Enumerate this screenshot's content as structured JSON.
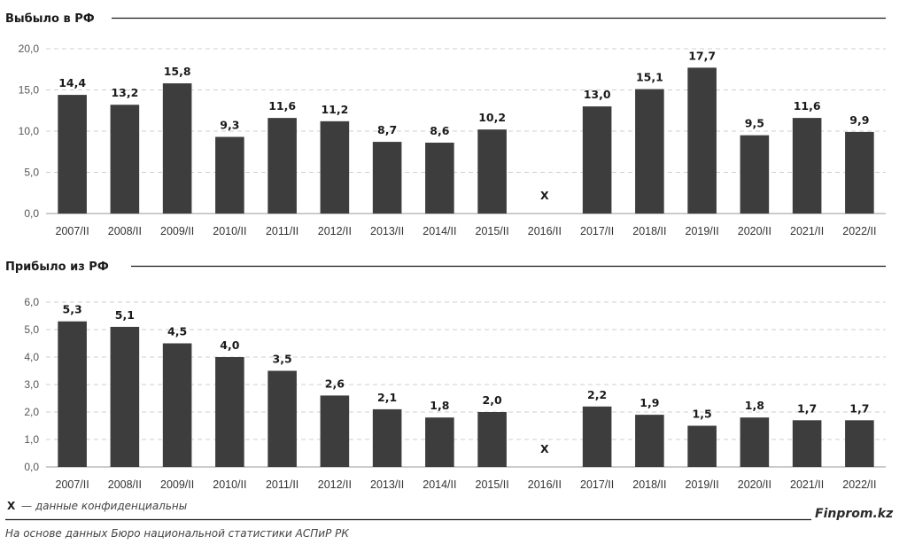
{
  "chart_data": [
    {
      "type": "bar",
      "title": "Выбыло в РФ",
      "categories": [
        "2007/II",
        "2008/II",
        "2009/II",
        "2010/II",
        "2011/II",
        "2012/II",
        "2013/II",
        "2014/II",
        "2015/II",
        "2016/II",
        "2017/II",
        "2018/II",
        "2019/II",
        "2020/II",
        "2021/II",
        "2022/II"
      ],
      "values": [
        14.4,
        13.2,
        15.8,
        9.3,
        11.6,
        11.2,
        8.7,
        8.6,
        10.2,
        null,
        13.0,
        15.1,
        17.7,
        9.5,
        11.6,
        9.9
      ],
      "labels": [
        "14,4",
        "13,2",
        "15,8",
        "9,3",
        "11,6",
        "11,2",
        "8,7",
        "8,6",
        "10,2",
        "X",
        "13,0",
        "15,1",
        "17,7",
        "9,5",
        "11,6",
        "9,9"
      ],
      "yticks": [
        "0,0",
        "5,0",
        "10,0",
        "15,0",
        "20,0"
      ],
      "ylim": [
        0,
        20
      ],
      "grid": true,
      "bar_color": "#3d3d3d"
    },
    {
      "type": "bar",
      "title": "Прибыло из РФ",
      "categories": [
        "2007/II",
        "2008/II",
        "2009/II",
        "2010/II",
        "2011/II",
        "2012/II",
        "2013/II",
        "2014/II",
        "2015/II",
        "2016/II",
        "2017/II",
        "2018/II",
        "2019/II",
        "2020/II",
        "2021/II",
        "2022/II"
      ],
      "values": [
        5.3,
        5.1,
        4.5,
        4.0,
        3.5,
        2.6,
        2.1,
        1.8,
        2.0,
        null,
        2.2,
        1.9,
        1.5,
        1.8,
        1.7,
        1.7
      ],
      "labels": [
        "5,3",
        "5,1",
        "4,5",
        "4,0",
        "3,5",
        "2,6",
        "2,1",
        "1,8",
        "2,0",
        "X",
        "2,2",
        "1,9",
        "1,5",
        "1,8",
        "1,7",
        "1,7"
      ],
      "yticks": [
        "0,0",
        "1,0",
        "2,0",
        "3,0",
        "4,0",
        "5,0",
        "6,0"
      ],
      "ylim": [
        0,
        6
      ],
      "grid": true,
      "bar_color": "#3d3d3d"
    }
  ],
  "footer": {
    "note_symbol": "X",
    "note_text": "— данные конфиденциальны",
    "brand": "Finprom.kz",
    "source": "На основе данных Бюро национальной статистики АСПиР РК"
  }
}
